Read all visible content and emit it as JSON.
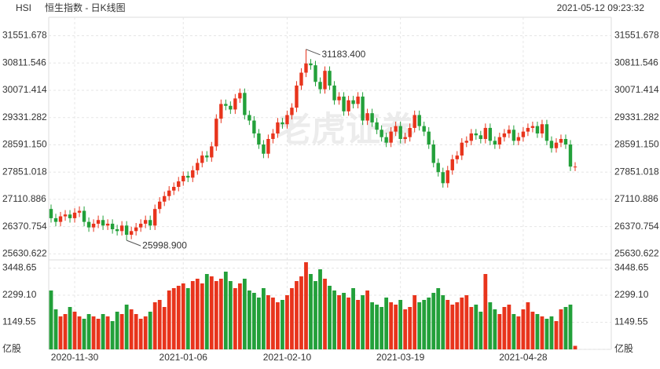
{
  "chart_data": {
    "type": "candlestick",
    "symbol": "HSI",
    "title": "恒生指数 - 日K线图",
    "timestamp": "2021-05-12 09:23:32",
    "watermark": "老虎证券",
    "up_color": "#e8341c",
    "down_color": "#23a03a",
    "grid": true,
    "categories": [
      null,
      null,
      null,
      null,
      null,
      "2020-11-30",
      null,
      null,
      null,
      null,
      null,
      null,
      null,
      null,
      null,
      null,
      null,
      null,
      null,
      null,
      null,
      null,
      null,
      null,
      null,
      null,
      null,
      null,
      "2021-01-06",
      null,
      null,
      null,
      null,
      null,
      null,
      null,
      null,
      null,
      null,
      null,
      null,
      null,
      null,
      null,
      null,
      null,
      null,
      null,
      null,
      null,
      "2021-02-10",
      null,
      null,
      null,
      null,
      null,
      null,
      null,
      null,
      null,
      null,
      null,
      null,
      null,
      null,
      null,
      null,
      null,
      null,
      null,
      null,
      null,
      null,
      null,
      "2021-03-19",
      null,
      null,
      null,
      null,
      null,
      null,
      null,
      null,
      null,
      null,
      null,
      null,
      null,
      null,
      null,
      null,
      null,
      null,
      null,
      null,
      null,
      null,
      null,
      null,
      null,
      "2021-04-28",
      null,
      null,
      null,
      null,
      null,
      null,
      null,
      null,
      null,
      null,
      null
    ],
    "open": [
      26850,
      26600,
      26500,
      26650,
      26700,
      26600,
      26750,
      26800,
      26500,
      26350,
      26450,
      26550,
      26400,
      26450,
      26300,
      26250,
      26400,
      26150,
      26250,
      26350,
      26450,
      26550,
      26400,
      26850,
      27050,
      27200,
      27350,
      27450,
      27600,
      27750,
      27700,
      27900,
      28100,
      28300,
      28250,
      28550,
      29300,
      29700,
      29650,
      29550,
      29850,
      30000,
      29400,
      29250,
      28900,
      28600,
      28350,
      28750,
      28900,
      29200,
      29150,
      29400,
      29600,
      30200,
      30550,
      30800,
      30750,
      30300,
      30100,
      30600,
      30200,
      29800,
      29900,
      29500,
      29800,
      29700,
      29900,
      29250,
      29450,
      29200,
      29000,
      28800,
      28650,
      28950,
      29100,
      28750,
      28800,
      29050,
      29400,
      29100,
      28950,
      28600,
      28100,
      27850,
      27550,
      27900,
      28200,
      28300,
      28650,
      28700,
      28900,
      28850,
      28750,
      29050,
      28700,
      28600,
      28800,
      28900,
      29000,
      28700,
      28800,
      28950,
      29050,
      29100,
      28900,
      29150,
      28700,
      28500,
      28650,
      28750,
      28600,
      28000
    ],
    "high": [
      26970,
      26720,
      26770,
      26820,
      26820,
      26870,
      26920,
      26920,
      26620,
      26570,
      26670,
      26670,
      26570,
      26570,
      26420,
      26520,
      26520,
      26370,
      26470,
      26570,
      26670,
      26670,
      26970,
      27170,
      27320,
      27470,
      27570,
      27720,
      27870,
      27870,
      28020,
      28220,
      28420,
      28420,
      28670,
      29420,
      29820,
      29820,
      29770,
      29970,
      30120,
      30120,
      29520,
      29370,
      29020,
      28720,
      28870,
      29020,
      29320,
      29320,
      29520,
      29720,
      30320,
      30670,
      31183.4,
      30920,
      30870,
      30420,
      30720,
      30720,
      30320,
      30020,
      30020,
      29920,
      29920,
      30020,
      30020,
      29570,
      29570,
      29320,
      29120,
      28920,
      29070,
      29220,
      29220,
      28920,
      29170,
      29520,
      29520,
      29220,
      29070,
      28720,
      28220,
      27970,
      28020,
      28320,
      28420,
      28770,
      28820,
      29020,
      29020,
      28970,
      29170,
      29170,
      28820,
      28920,
      29020,
      29120,
      29120,
      28920,
      29070,
      29170,
      29220,
      29220,
      29270,
      29270,
      28820,
      28770,
      28870,
      28870,
      28720,
      28120
    ],
    "low": [
      26480,
      26380,
      26380,
      26530,
      26480,
      26480,
      26630,
      26380,
      26230,
      26230,
      26330,
      26280,
      26280,
      26180,
      26130,
      26130,
      25998.9,
      26030,
      26130,
      26230,
      26330,
      26280,
      26280,
      26730,
      26930,
      27080,
      27230,
      27330,
      27480,
      27580,
      27580,
      27780,
      27980,
      28130,
      28130,
      28430,
      29180,
      29530,
      29430,
      29430,
      29730,
      29280,
      29130,
      28780,
      28480,
      28230,
      28230,
      28630,
      28780,
      29030,
      29030,
      29280,
      29480,
      30080,
      30430,
      30630,
      30180,
      29980,
      29980,
      30080,
      29680,
      29680,
      29380,
      29380,
      29580,
      29580,
      29130,
      29130,
      29080,
      28880,
      28680,
      28530,
      28530,
      28830,
      28630,
      28630,
      28680,
      28930,
      28980,
      28830,
      28480,
      27980,
      27730,
      27430,
      27430,
      27780,
      28080,
      28180,
      28530,
      28580,
      28730,
      28630,
      28630,
      28580,
      28480,
      28480,
      28680,
      28780,
      28580,
      28580,
      28680,
      28830,
      28930,
      28780,
      28780,
      28580,
      28380,
      28380,
      28530,
      28480,
      27880,
      27880
    ],
    "close": [
      26600,
      26500,
      26650,
      26700,
      26600,
      26750,
      26800,
      26500,
      26350,
      26450,
      26550,
      26400,
      26450,
      26300,
      26250,
      26400,
      26150,
      26250,
      26350,
      26450,
      26550,
      26400,
      26850,
      27050,
      27200,
      27350,
      27450,
      27600,
      27750,
      27700,
      27900,
      28100,
      28300,
      28250,
      28550,
      29300,
      29700,
      29650,
      29550,
      29850,
      30000,
      29400,
      29250,
      28900,
      28600,
      28350,
      28750,
      28900,
      29200,
      29150,
      29400,
      29600,
      30200,
      30550,
      30800,
      30750,
      30300,
      30100,
      30600,
      30200,
      29800,
      29900,
      29500,
      29800,
      29700,
      29900,
      29250,
      29450,
      29200,
      29000,
      28800,
      28650,
      28950,
      29100,
      28750,
      28800,
      29050,
      29400,
      29100,
      28950,
      28600,
      28100,
      27850,
      27550,
      27900,
      28200,
      28300,
      28650,
      28700,
      28900,
      28850,
      28750,
      29050,
      28700,
      28600,
      28800,
      28900,
      29000,
      28700,
      28800,
      28950,
      29050,
      29100,
      28900,
      29150,
      28700,
      28500,
      28650,
      28750,
      28600,
      28000,
      28000
    ],
    "ylim": [
      25490,
      31712
    ],
    "yticks": [
      25630.622,
      26370.754,
      27110.886,
      27851.018,
      {
        "value": 28591.15,
        "label": "28591.150"
      },
      29331.282,
      30071.414,
      30811.546,
      31551.678
    ],
    "annotations": [
      {
        "value": 31183.4,
        "label": "31183.400"
      },
      {
        "value": 25998.9,
        "label": "25998.900"
      }
    ],
    "volume": {
      "values": [
        2500,
        1700,
        1400,
        1500,
        1800,
        1600,
        1400,
        1300,
        1500,
        1400,
        1300,
        1500,
        1400,
        1200,
        1600,
        1500,
        1900,
        1700,
        1500,
        1300,
        1400,
        1600,
        2000,
        2100,
        1800,
        2500,
        2600,
        2700,
        2800,
        2600,
        2900,
        3000,
        2800,
        3200,
        3100,
        2900,
        3000,
        3300,
        2900,
        2600,
        2800,
        3000,
        2500,
        2400,
        2200,
        2600,
        2300,
        2200,
        2000,
        2100,
        2300,
        2600,
        2900,
        3100,
        3700,
        3200,
        2900,
        3400,
        3000,
        2700,
        2500,
        2300,
        2400,
        2200,
        2600,
        2100,
        2300,
        2500,
        2000,
        1900,
        1800,
        2200,
        2000,
        1900,
        2100,
        1700,
        1800,
        2300,
        2000,
        2100,
        2200,
        2400,
        2600,
        2300,
        2100,
        1900,
        2000,
        2200,
        2300,
        1800,
        1900,
        1600,
        3200,
        2000,
        1700,
        1500,
        1800,
        1900,
        1500,
        1400,
        1700,
        2000,
        1600,
        1500,
        1400,
        1300,
        1400,
        1200,
        1700,
        1800,
        1900,
        150
      ],
      "ylim": [
        0,
        3700
      ],
      "yticks": [
        {
          "value": 0,
          "label": "亿股"
        },
        1149.55,
        {
          "value": 2299.1,
          "label": "2299.10"
        },
        3448.65
      ]
    }
  }
}
